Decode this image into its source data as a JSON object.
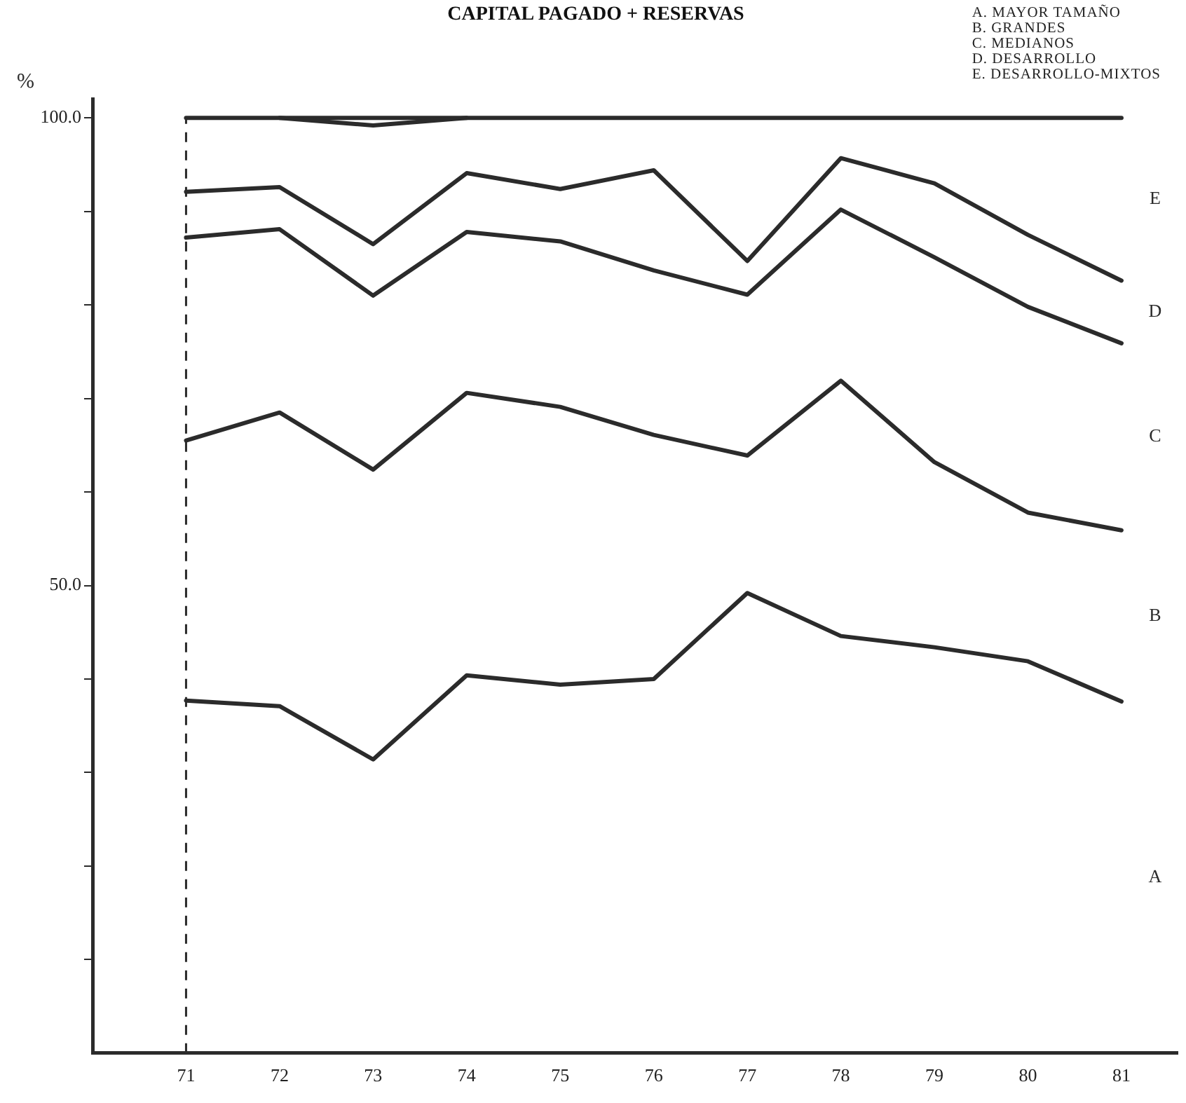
{
  "chart_data": {
    "type": "line",
    "title": "CAPITAL PAGADO + RESERVAS",
    "ylabel": "%",
    "x": [
      71,
      72,
      73,
      74,
      75,
      76,
      77,
      78,
      79,
      80,
      81
    ],
    "series": [
      {
        "color": "#2b2b2b",
        "values": [
          37.7,
          37.1,
          31.4,
          40.4,
          39.4,
          40.0,
          49.2,
          44.6,
          43.4,
          41.9,
          37.6
        ]
      },
      {
        "color": "#2b2b2b",
        "values": [
          65.5,
          68.5,
          62.4,
          70.6,
          69.1,
          66.1,
          63.9,
          71.9,
          63.2,
          57.8,
          55.9
        ]
      },
      {
        "color": "#2b2b2b",
        "values": [
          87.2,
          88.1,
          81.0,
          87.8,
          86.8,
          83.7,
          81.1,
          90.2,
          85.1,
          79.8,
          75.9
        ]
      },
      {
        "color": "#2b2b2b",
        "values": [
          92.1,
          92.6,
          86.5,
          94.1,
          92.4,
          94.4,
          84.7,
          95.7,
          93.0,
          87.5,
          82.6
        ]
      },
      {
        "color": "#2b2b2b",
        "values": [
          null,
          100,
          99.2,
          100,
          null,
          null,
          null,
          null,
          null,
          null,
          null
        ]
      },
      {
        "color": "#2b2b2b",
        "values": [
          100,
          100,
          100,
          100,
          100,
          100,
          100,
          100,
          100,
          100,
          100
        ]
      }
    ],
    "xlim": [
      70,
      81.6
    ],
    "xticks": [
      71,
      72,
      73,
      74,
      75,
      76,
      77,
      78,
      79,
      80,
      81
    ],
    "ylim": [
      0,
      102
    ],
    "yticks": [
      {
        "value": 10,
        "label": null
      },
      {
        "value": 20,
        "label": null
      },
      {
        "value": 30,
        "label": null
      },
      {
        "value": 40,
        "label": null
      },
      {
        "value": 50,
        "label": "50.0"
      },
      {
        "value": 60,
        "label": null
      },
      {
        "value": 70,
        "label": null
      },
      {
        "value": 80,
        "label": null
      },
      {
        "value": 90,
        "label": null
      },
      {
        "value": 100,
        "label": "100.0"
      }
    ],
    "ref_lines": [
      {
        "axis": "x",
        "value": 71,
        "line_style": "dashed",
        "color": "#2b2b2b"
      }
    ],
    "annotations": [
      "A. MAYOR TAMAÑO",
      "B. GRANDES",
      "C. MEDIANOS",
      "D. DESARROLLO",
      "E. DESARROLLO-MIXTOS",
      "A",
      "B",
      "C",
      "D",
      "E"
    ],
    "grid": false,
    "legend": false,
    "marker": "none",
    "line_style": "solid"
  }
}
